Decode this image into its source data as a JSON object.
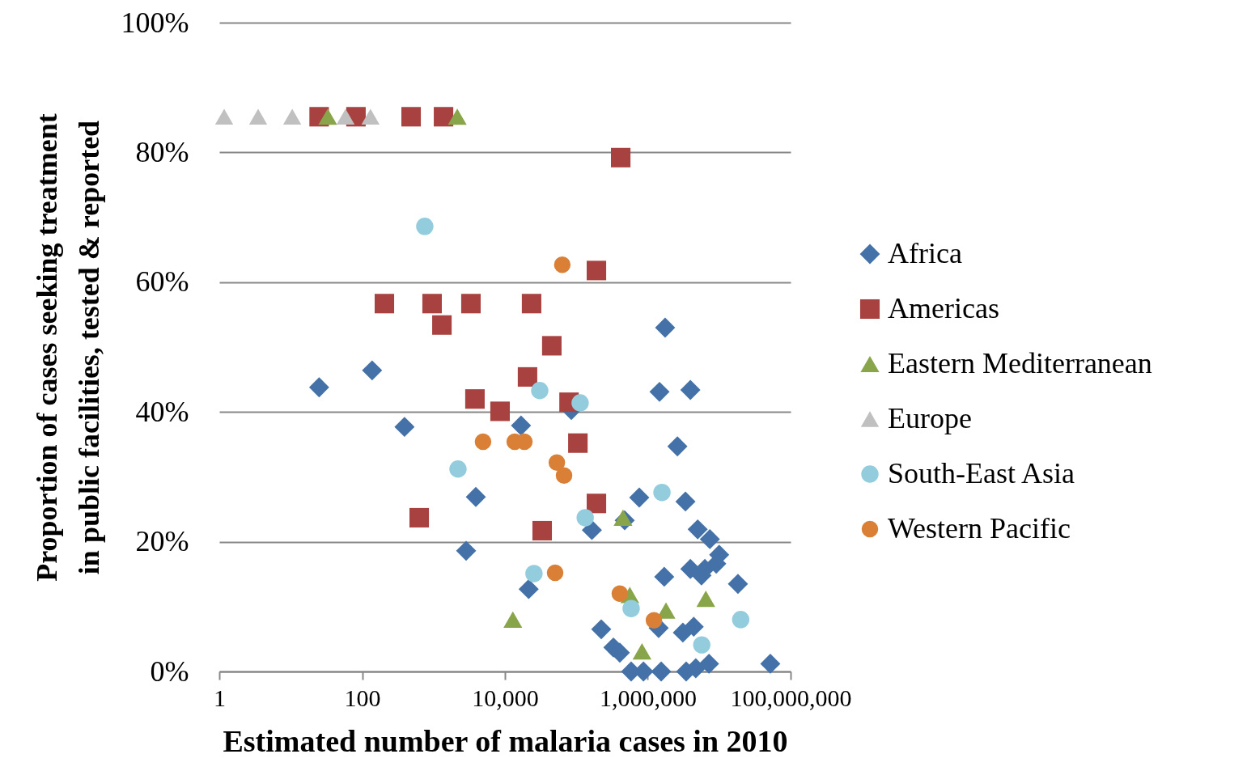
{
  "chart_data": {
    "type": "scatter",
    "xlabel": "Estimated number of malaria cases in 2010",
    "ylabel": "Proportion of cases seeking treatment\nin public facilities, tested & reported",
    "log": "x",
    "xlim": [
      1,
      100000000
    ],
    "xticks": [
      1,
      100,
      {
        "value": 10000,
        "label": "10,000"
      },
      {
        "value": 1000000,
        "label": "1,000,000"
      },
      {
        "value": 100000000,
        "label": "100,000,000"
      }
    ],
    "ylim": [
      0,
      100
    ],
    "yticks": [
      {
        "value": 0,
        "label": "0%"
      },
      {
        "value": 20,
        "label": "20%"
      },
      {
        "value": 40,
        "label": "40%"
      },
      {
        "value": 60,
        "label": "60%"
      },
      {
        "value": 80,
        "label": "80%"
      },
      {
        "value": 100,
        "label": "100%"
      }
    ],
    "grid": "y",
    "legend": "right",
    "series": [
      {
        "name": "Africa",
        "color": "#4472a8",
        "marker": "diamond",
        "x": [
          25,
          138,
          392,
          16800,
          3910,
          2860,
          21500,
          85000,
          1750000,
          1460000,
          3950000,
          2600000,
          760000,
          475000,
          3370000,
          165000,
          5000000,
          7400000,
          10000000,
          9100000,
          6300000,
          3950000,
          5650000,
          1700000,
          18300000,
          223000,
          406000,
          330000,
          1420000,
          3100000,
          4400000,
          7200000,
          52000000,
          585000,
          870000,
          1540000,
          3450000,
          4700000
        ],
        "values": [
          43.8,
          46.4,
          37.7,
          37.9,
          26.9,
          18.6,
          12.7,
          40.3,
          53.0,
          43.1,
          43.4,
          34.7,
          26.8,
          23.3,
          26.2,
          21.8,
          21.9,
          20.4,
          18.0,
          16.6,
          15.8,
          15.8,
          14.8,
          14.6,
          13.5,
          6.5,
          2.9,
          3.7,
          6.7,
          6.0,
          6.9,
          1.2,
          1.2,
          0,
          0,
          0,
          0,
          0.5
        ]
      },
      {
        "name": "Americas",
        "color": "#a84240",
        "marker": "square",
        "x": [
          25,
          82,
          485,
          1380,
          418000,
          191000,
          205,
          955,
          3340,
          23600,
          1310,
          45300,
          20700,
          3800,
          8540,
          79000,
          105000,
          630,
          191000,
          33200
        ],
        "values": [
          85.5,
          85.5,
          85.5,
          85.5,
          79.2,
          61.8,
          56.7,
          56.7,
          56.7,
          56.7,
          53.4,
          50.2,
          45.4,
          42.0,
          40.1,
          41.5,
          35.2,
          23.7,
          25.9,
          21.7
        ]
      },
      {
        "name": "Eastern Mediterranean",
        "color": "#88a54a",
        "marker": "triangle",
        "x": [
          33,
          2150,
          12900,
          450000,
          560000,
          1800000,
          830000,
          6500000
        ],
        "values": [
          85.5,
          85.5,
          8.0,
          23.7,
          11.8,
          9.4,
          3.1,
          11.2
        ]
      },
      {
        "name": "Europe",
        "color": "#c0c0c0",
        "marker": "triangle",
        "x": [
          1.17,
          3.5,
          10.5,
          58.6,
          131
        ],
        "values": [
          85.5,
          85.5,
          85.5,
          85.5,
          85.5
        ]
      },
      {
        "name": "South-East Asia",
        "color": "#93cddd",
        "marker": "circle",
        "x": [
          754,
          2200,
          30700,
          113000,
          1580000,
          133000,
          25500,
          585000,
          20000000,
          5700000
        ],
        "values": [
          68.6,
          31.2,
          43.3,
          41.4,
          27.6,
          23.7,
          15.1,
          9.7,
          8.0,
          4.1
        ]
      },
      {
        "name": "Western Pacific",
        "color": "#d98036",
        "marker": "circle",
        "x": [
          63500,
          4930,
          13700,
          18700,
          53300,
          67200,
          50400,
          406000,
          1220000
        ],
        "values": [
          62.7,
          35.4,
          35.4,
          35.4,
          32.2,
          30.2,
          15.2,
          12.0,
          7.9
        ]
      }
    ]
  }
}
